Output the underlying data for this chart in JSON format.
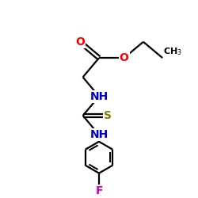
{
  "bg_color": "#ffffff",
  "bond_color": "#000000",
  "bond_lw": 1.6,
  "atom_colors": {
    "O": "#ff0000",
    "N": "#0000cc",
    "S": "#808000",
    "F": "#cc00cc",
    "C": "#000000"
  },
  "font_size_atom": 10,
  "font_size_sub": 8
}
